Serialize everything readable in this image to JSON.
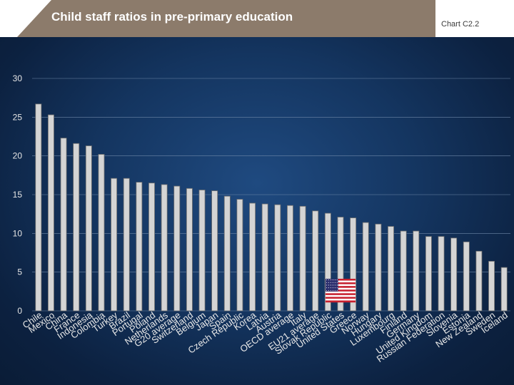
{
  "header": {
    "title": "Child staff ratios in pre-primary education",
    "chart_ref": "Chart C2.2"
  },
  "colors": {
    "title_band": "#8c7b6b",
    "background": "#143560",
    "bar_fill": "#d4d4d4",
    "bar_stroke": "#6e6e6e"
  },
  "chart_data": {
    "type": "bar",
    "title": "Child staff ratios in pre-primary education",
    "xlabel": "",
    "ylabel": "",
    "ylim": [
      0,
      30
    ],
    "yticks": [
      0,
      5,
      10,
      15,
      20,
      25,
      30
    ],
    "grid": true,
    "highlight": {
      "category": "United States",
      "icon": "us-flag-icon"
    },
    "categories": [
      "Chile",
      "Mexico",
      "China",
      "France",
      "Indonesia",
      "Colombia",
      "Turkey",
      "Brazil",
      "Portugal",
      "Poland",
      "Netherlands",
      "G20 average",
      "Switzerland",
      "Belgium",
      "Japan",
      "Spain",
      "Czech Republic",
      "Korea",
      "Latvia",
      "Austria",
      "OECD average",
      "Italy",
      "EU21 average",
      "Slovak Republic",
      "United States",
      "Greece",
      "Norway",
      "Hungary",
      "Luxembourg",
      "Finland",
      "Germany",
      "United Kingdom",
      "Russian Federation",
      "Slovenia",
      "Estonia",
      "New Zealand",
      "Sweden",
      "Iceland"
    ],
    "values": [
      26.7,
      25.3,
      22.3,
      21.6,
      21.3,
      20.2,
      17.1,
      17.1,
      16.6,
      16.5,
      16.3,
      16.1,
      15.8,
      15.6,
      15.5,
      14.8,
      14.4,
      13.9,
      13.8,
      13.7,
      13.6,
      13.5,
      12.9,
      12.6,
      12.1,
      12.0,
      11.4,
      11.2,
      10.9,
      10.3,
      10.3,
      9.6,
      9.6,
      9.4,
      8.9,
      7.7,
      6.4,
      5.6
    ]
  }
}
